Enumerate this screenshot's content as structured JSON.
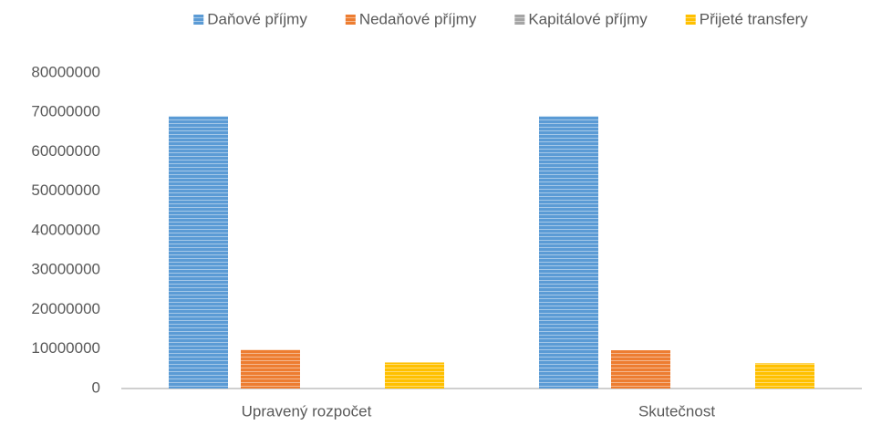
{
  "chart_data": {
    "type": "bar",
    "categories": [
      "Upravený rozpočet",
      "Skutečnost"
    ],
    "series": [
      {
        "name": "Daňové příjmy",
        "color": "#5b9bd5",
        "values": [
          69000000,
          69000000
        ]
      },
      {
        "name": "Nedaňové příjmy",
        "color": "#ed7d31",
        "values": [
          9800000,
          9700000
        ]
      },
      {
        "name": "Kapitálové příjmy",
        "color": "#a5a5a5",
        "values": [
          0,
          0
        ]
      },
      {
        "name": "Přijeté transfery",
        "color": "#ffc000",
        "values": [
          6600000,
          6400000
        ]
      }
    ],
    "ylim": [
      0,
      80000000
    ],
    "yticks": [
      0,
      10000000,
      20000000,
      30000000,
      40000000,
      50000000,
      60000000,
      70000000,
      80000000
    ],
    "grid": false,
    "legend": "top"
  }
}
